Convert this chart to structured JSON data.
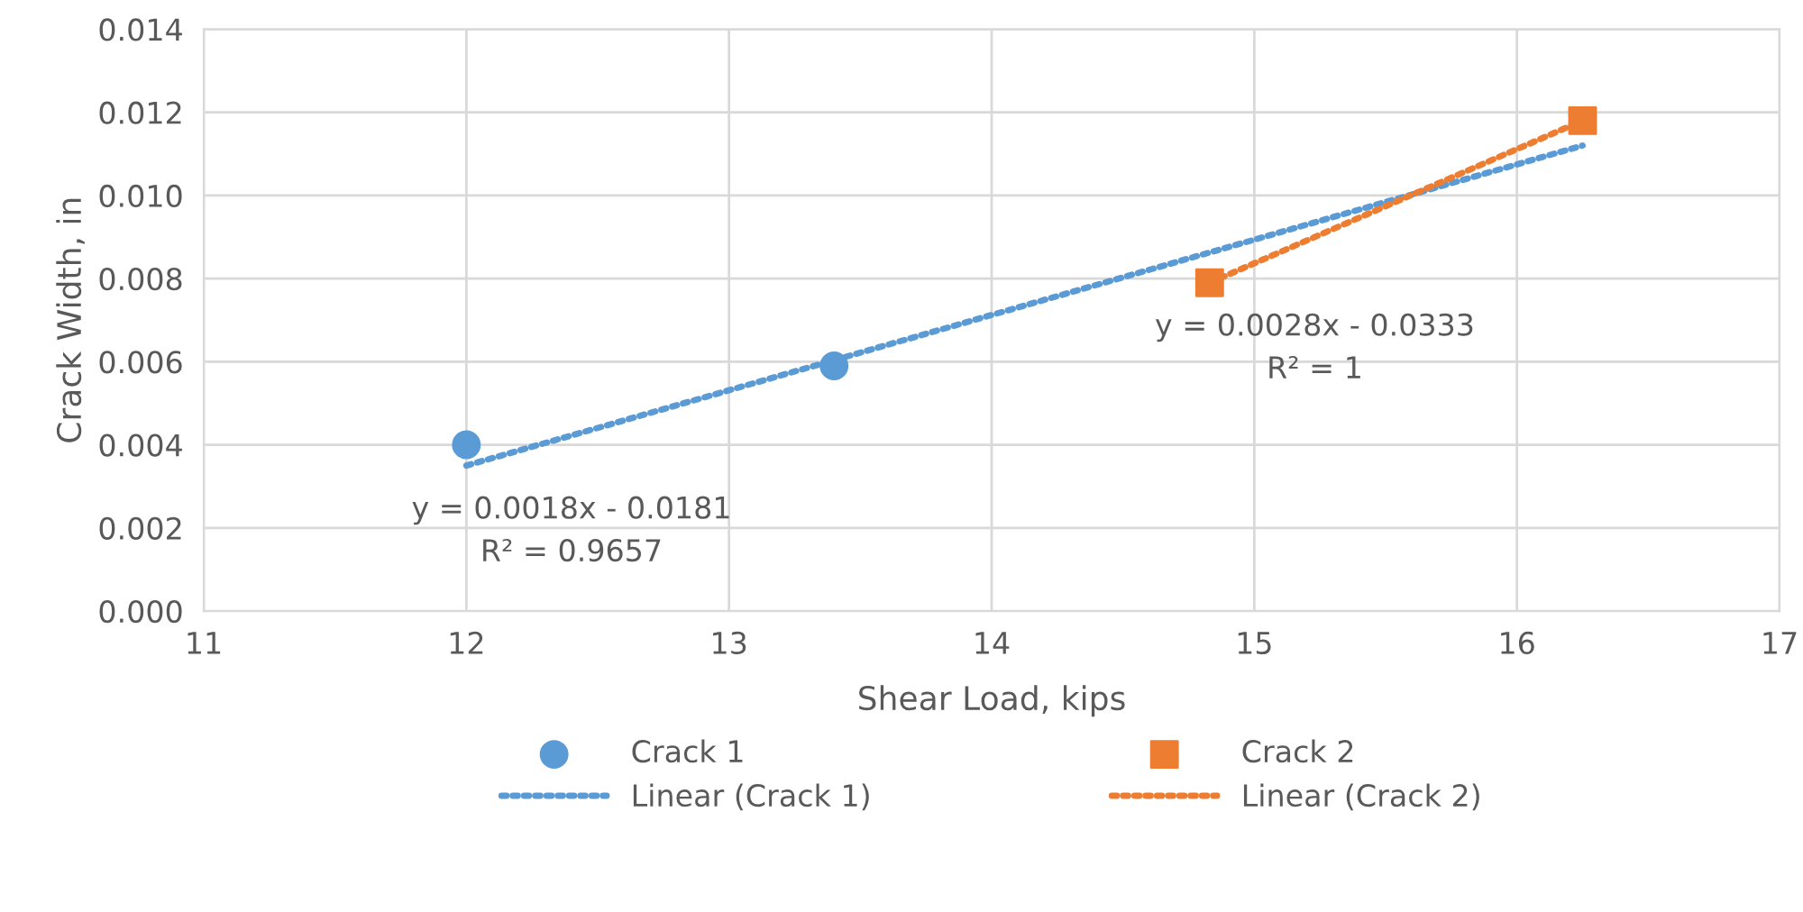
{
  "chart_data": {
    "type": "scatter",
    "xlabel": "Shear Load, kips",
    "ylabel": "Crack Width, in",
    "xlim": [
      11,
      17
    ],
    "xticks": [
      11,
      12,
      13,
      14,
      15,
      16,
      17
    ],
    "ylim": [
      0,
      0.014
    ],
    "yticks": [
      {
        "value": 0,
        "label": "0.000"
      },
      {
        "value": 0.002,
        "label": "0.002"
      },
      {
        "value": 0.004,
        "label": "0.004"
      },
      {
        "value": 0.006,
        "label": "0.006"
      },
      {
        "value": 0.008,
        "label": "0.008"
      },
      {
        "value": 0.01,
        "label": "0.010"
      },
      {
        "value": 0.012,
        "label": "0.012"
      },
      {
        "value": 0.014,
        "label": "0.014"
      }
    ],
    "grid": true,
    "legend": "bottom",
    "series": [
      {
        "name": "Crack 1",
        "marker": "circle",
        "color": "#5b9bd5",
        "x": [
          12.0,
          13.4
        ],
        "values": [
          0.004,
          0.0059
        ]
      },
      {
        "name": "Linear (Crack 1)",
        "type": "line",
        "marker": "none",
        "line_style": "dotted",
        "color": "#5b9bd5",
        "x": [
          12.0,
          16.25
        ],
        "values": [
          0.0035,
          0.0112
        ]
      },
      {
        "name": "Crack 2",
        "marker": "square",
        "color": "#ed7d31",
        "x": [
          14.83,
          16.25
        ],
        "values": [
          0.0079,
          0.0118
        ]
      },
      {
        "name": "Linear (Crack 2)",
        "type": "line",
        "marker": "none",
        "line_style": "dotted",
        "color": "#ed7d31",
        "x": [
          14.83,
          16.25
        ],
        "values": [
          0.0079,
          0.0118
        ]
      }
    ],
    "annotations": [
      "y = 0.0018x - 0.0181\nR² = 0.9657",
      "y = 0.0028x - 0.0333\nR² = 1"
    ]
  }
}
